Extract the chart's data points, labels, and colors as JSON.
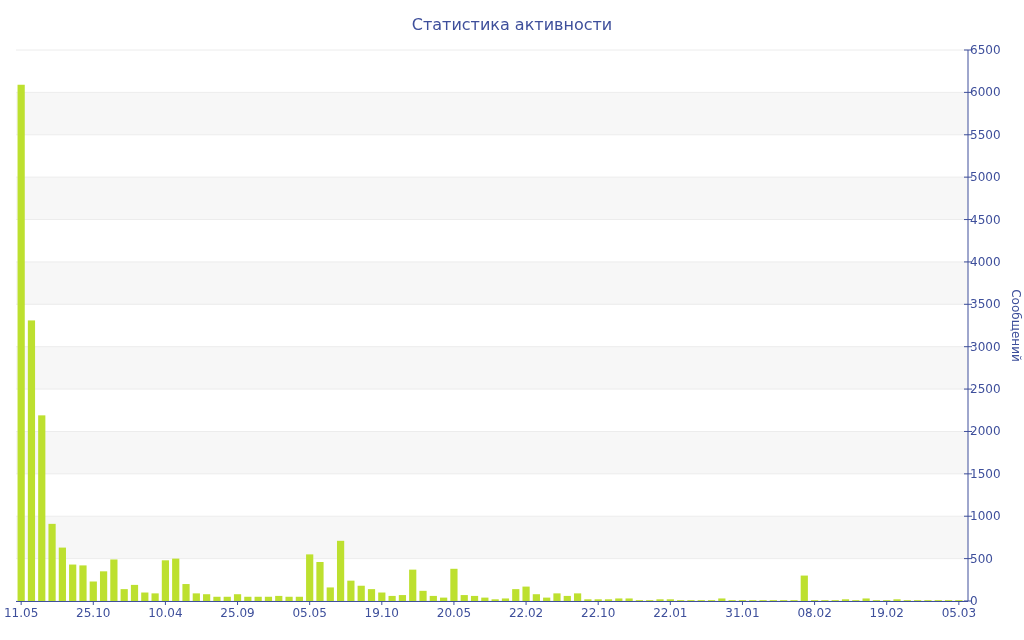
{
  "chart_data": {
    "type": "bar",
    "title": "Статистика активности",
    "ylabel": "Сообщений",
    "categories": [
      "11.05",
      null,
      null,
      null,
      null,
      null,
      null,
      "25.10",
      null,
      null,
      null,
      null,
      null,
      null,
      "10.04",
      null,
      null,
      null,
      null,
      null,
      null,
      "25.09",
      null,
      null,
      null,
      null,
      null,
      null,
      "05.05",
      null,
      null,
      null,
      null,
      null,
      null,
      "19.10",
      null,
      null,
      null,
      null,
      null,
      null,
      "20.05",
      null,
      null,
      null,
      null,
      null,
      null,
      "22.02",
      null,
      null,
      null,
      null,
      null,
      null,
      "22.10",
      null,
      null,
      null,
      null,
      null,
      null,
      "22.01",
      null,
      null,
      null,
      null,
      null,
      null,
      "31.01",
      null,
      null,
      null,
      null,
      null,
      null,
      "08.02",
      null,
      null,
      null,
      null,
      null,
      null,
      "19.02",
      null,
      null,
      null,
      null,
      null,
      null,
      "05.03"
    ],
    "series": [
      {
        "color": "#bde02f",
        "values": [
          6090,
          3310,
          2190,
          910,
          630,
          430,
          420,
          230,
          350,
          490,
          140,
          190,
          100,
          90,
          480,
          500,
          200,
          90,
          80,
          50,
          50,
          80,
          50,
          50,
          50,
          60,
          50,
          50,
          550,
          460,
          160,
          710,
          240,
          180,
          140,
          100,
          60,
          70,
          370,
          120,
          60,
          40,
          380,
          70,
          60,
          40,
          20,
          30,
          140,
          170,
          80,
          40,
          90,
          60,
          90,
          20,
          20,
          20,
          30,
          30,
          10,
          10,
          20,
          20,
          10,
          10,
          10,
          10,
          30,
          10,
          10,
          10,
          10,
          10,
          10,
          10,
          300,
          10,
          10,
          10,
          20,
          10,
          30,
          10,
          10,
          20,
          10,
          10,
          10,
          10,
          10,
          10
        ]
      }
    ],
    "ylim": [
      0,
      6500
    ],
    "yticks": [
      0,
      500,
      1000,
      1500,
      2000,
      2500,
      3000,
      3500,
      4000,
      4500,
      5000,
      5500,
      6000,
      6500
    ],
    "grid": "y"
  }
}
